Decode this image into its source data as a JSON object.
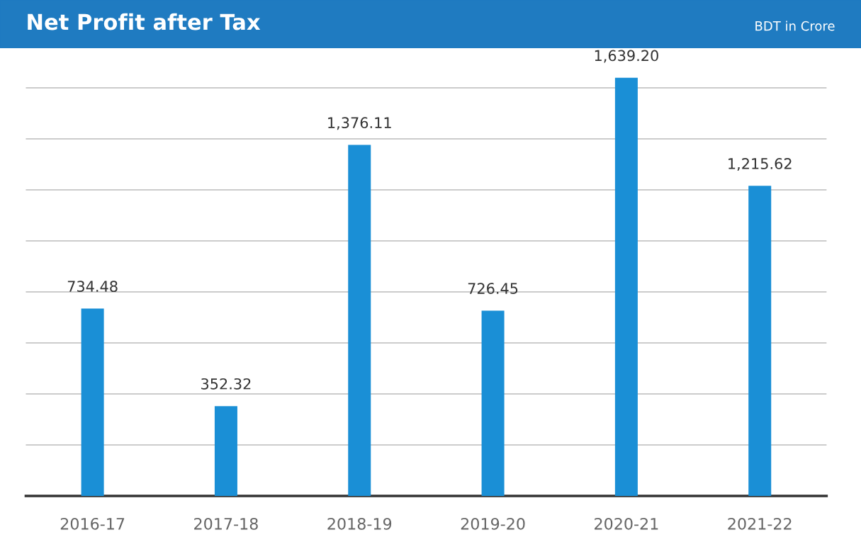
{
  "chart_data": {
    "type": "bar",
    "title": "Net Profit after Tax",
    "subtitle": "BDT in Crore",
    "categories": [
      "2016-17",
      "2017-18",
      "2018-19",
      "2019-20",
      "2020-21",
      "2021-22"
    ],
    "values": [
      734.48,
      352.32,
      1376.11,
      726.45,
      1639.2,
      1215.62
    ],
    "value_labels": [
      "734.48",
      "352.32",
      "1,376.11",
      "726.45",
      "1,639.20",
      "1,215.62"
    ],
    "color": "#1a8fd6",
    "yticks": [
      {
        "value": 0,
        "label": null
      },
      {
        "value": 200,
        "label": null
      },
      {
        "value": 400,
        "label": null
      },
      {
        "value": 600,
        "label": null
      },
      {
        "value": 800,
        "label": null
      },
      {
        "value": 1000,
        "label": null
      },
      {
        "value": 1200,
        "label": null
      },
      {
        "value": 1400,
        "label": null
      },
      {
        "value": 1600,
        "label": null
      }
    ],
    "tick_labels": "x",
    "grid": "y"
  }
}
